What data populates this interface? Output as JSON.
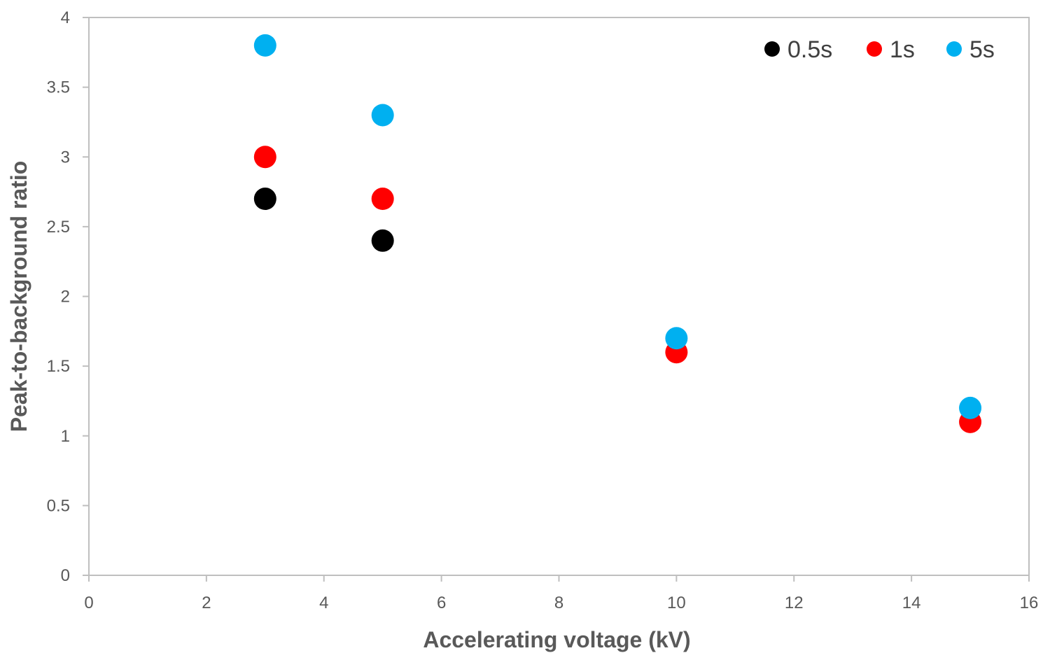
{
  "chart_data": {
    "type": "scatter",
    "title": "",
    "xlabel": "Accelerating voltage (kV)",
    "ylabel": "Peak-to-background ratio",
    "xlim": [
      0,
      16
    ],
    "ylim": [
      0,
      4
    ],
    "xticks": [
      0,
      2,
      4,
      6,
      8,
      10,
      12,
      14,
      16
    ],
    "yticks": [
      0,
      0.5,
      1,
      1.5,
      2,
      2.5,
      3,
      3.5,
      4
    ],
    "xtick_labels": [
      "0",
      "2",
      "4",
      "6",
      "8",
      "10",
      "12",
      "14",
      "16"
    ],
    "ytick_labels": [
      "0",
      "0.5",
      "1",
      "1.5",
      "2",
      "2.5",
      "3",
      "3.5",
      "4"
    ],
    "grid": false,
    "legend_position": "top-right",
    "series": [
      {
        "name": "0.5s",
        "color": "#000000",
        "x": [
          3,
          5
        ],
        "y": [
          2.7,
          2.4
        ]
      },
      {
        "name": "1s",
        "color": "#ff0000",
        "x": [
          3,
          5,
          10,
          15
        ],
        "y": [
          3.0,
          2.7,
          1.6,
          1.1
        ]
      },
      {
        "name": "5s",
        "color": "#00b0f0",
        "x": [
          3,
          5,
          10,
          15
        ],
        "y": [
          3.8,
          3.3,
          1.7,
          1.2
        ]
      }
    ]
  }
}
